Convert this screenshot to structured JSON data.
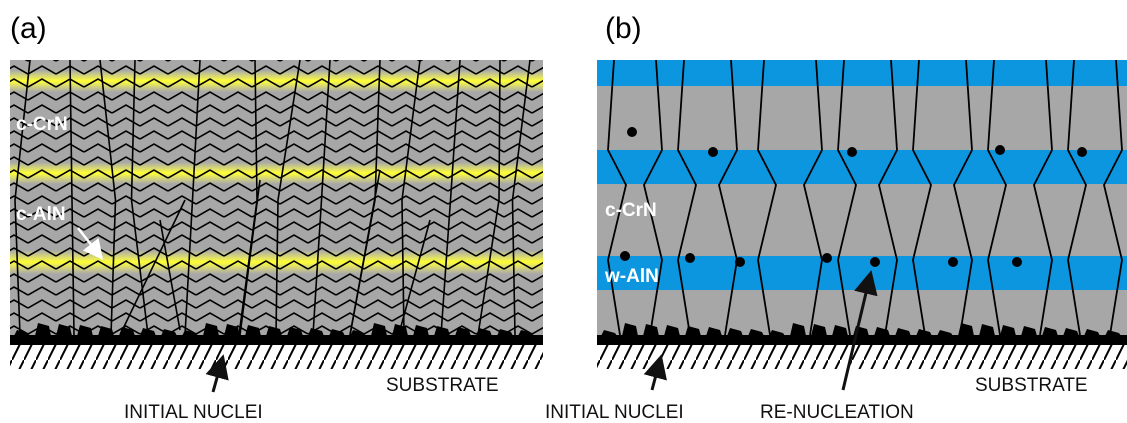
{
  "panels": [
    {
      "label": "(a)",
      "layers": [
        "c-CrN",
        "c-AlN"
      ],
      "nuclei": "INITIAL NUCLEI",
      "substrate": "SUBSTRATE"
    },
    {
      "label": "(b)",
      "layers": [
        "c-CrN",
        "w-AlN"
      ],
      "nuclei": "INITIAL NUCLEI",
      "renucleation": "RE-NUCLEATION",
      "substrate": "SUBSTRATE"
    }
  ]
}
